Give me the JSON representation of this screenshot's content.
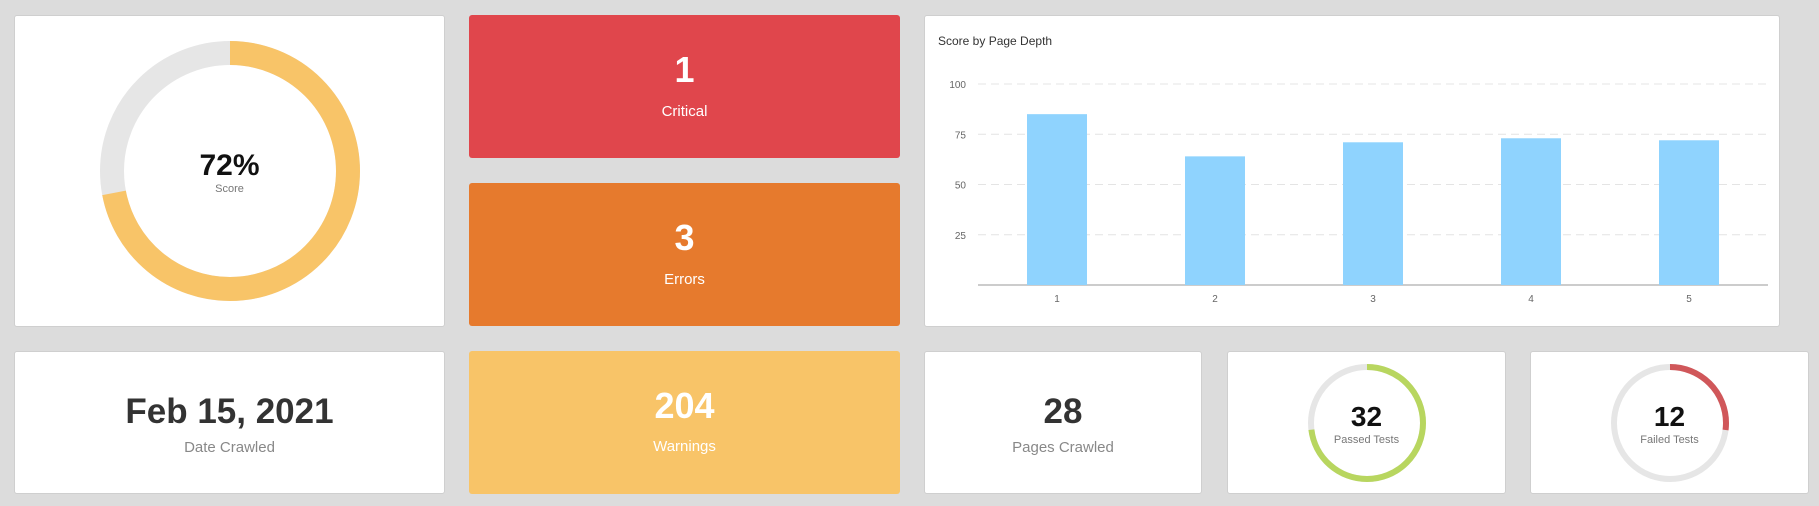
{
  "score": {
    "value": 72,
    "display": "72%",
    "label": "Score",
    "color": "#f8c468",
    "track_color": "#e6e6e6"
  },
  "critical": {
    "count": "1",
    "label": "Critical",
    "color": "#e0464c"
  },
  "errors": {
    "count": "3",
    "label": "Errors",
    "color": "#e67a2d"
  },
  "warnings": {
    "count": "204",
    "label": "Warnings",
    "color": "#f8c468"
  },
  "date_crawled": {
    "value": "Feb 15, 2021",
    "label": "Date Crawled"
  },
  "pages_crawled": {
    "value": "28",
    "label": "Pages Crawled"
  },
  "passed_tests": {
    "value": "32",
    "label": "Passed Tests",
    "fraction": 0.73,
    "color": "#b8d65f"
  },
  "failed_tests": {
    "value": "12",
    "label": "Failed Tests",
    "fraction": 0.27,
    "color": "#d0575a"
  },
  "chart_data": {
    "type": "bar",
    "title": "Score by Page Depth",
    "categories": [
      "1",
      "2",
      "3",
      "4",
      "5"
    ],
    "values": [
      85,
      64,
      71,
      73,
      72
    ],
    "ylim": [
      0,
      100
    ],
    "yticks": [
      "25",
      "50",
      "75",
      "100"
    ],
    "xlabel": "",
    "ylabel": "",
    "grid": true,
    "bar_color": "#8fd3fe"
  }
}
